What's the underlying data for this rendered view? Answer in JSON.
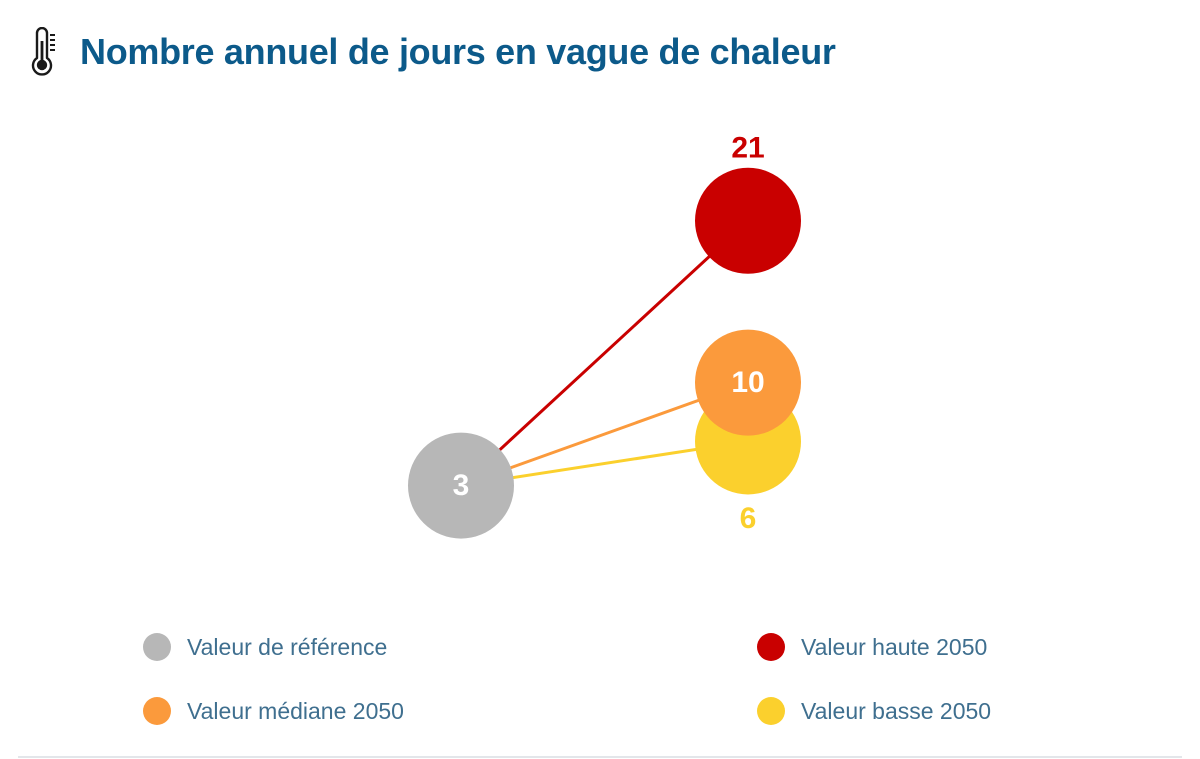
{
  "title": "Nombre annuel de jours en vague de chaleur",
  "icons": {
    "header": "thermometer-icon"
  },
  "colors": {
    "title": "#0c5a8a",
    "reference": "#b7b7b7",
    "haute": "#c90000",
    "mediane": "#fb9a3c",
    "basse": "#fbd02d",
    "legend_text": "#3f6f8f"
  },
  "chart_data": {
    "type": "scatter",
    "reference": {
      "name": "Valeur de référence",
      "value": 3,
      "label": "3"
    },
    "series": [
      {
        "name": "Valeur haute 2050",
        "value": 21,
        "label": "21"
      },
      {
        "name": "Valeur médiane 2050",
        "value": 10,
        "label": "10"
      },
      {
        "name": "Valeur basse 2050",
        "value": 6,
        "label": "6"
      }
    ]
  },
  "legend": [
    {
      "label": "Valeur de référence"
    },
    {
      "label": "Valeur haute 2050"
    },
    {
      "label": "Valeur médiane 2050"
    },
    {
      "label": "Valeur basse 2050"
    }
  ]
}
